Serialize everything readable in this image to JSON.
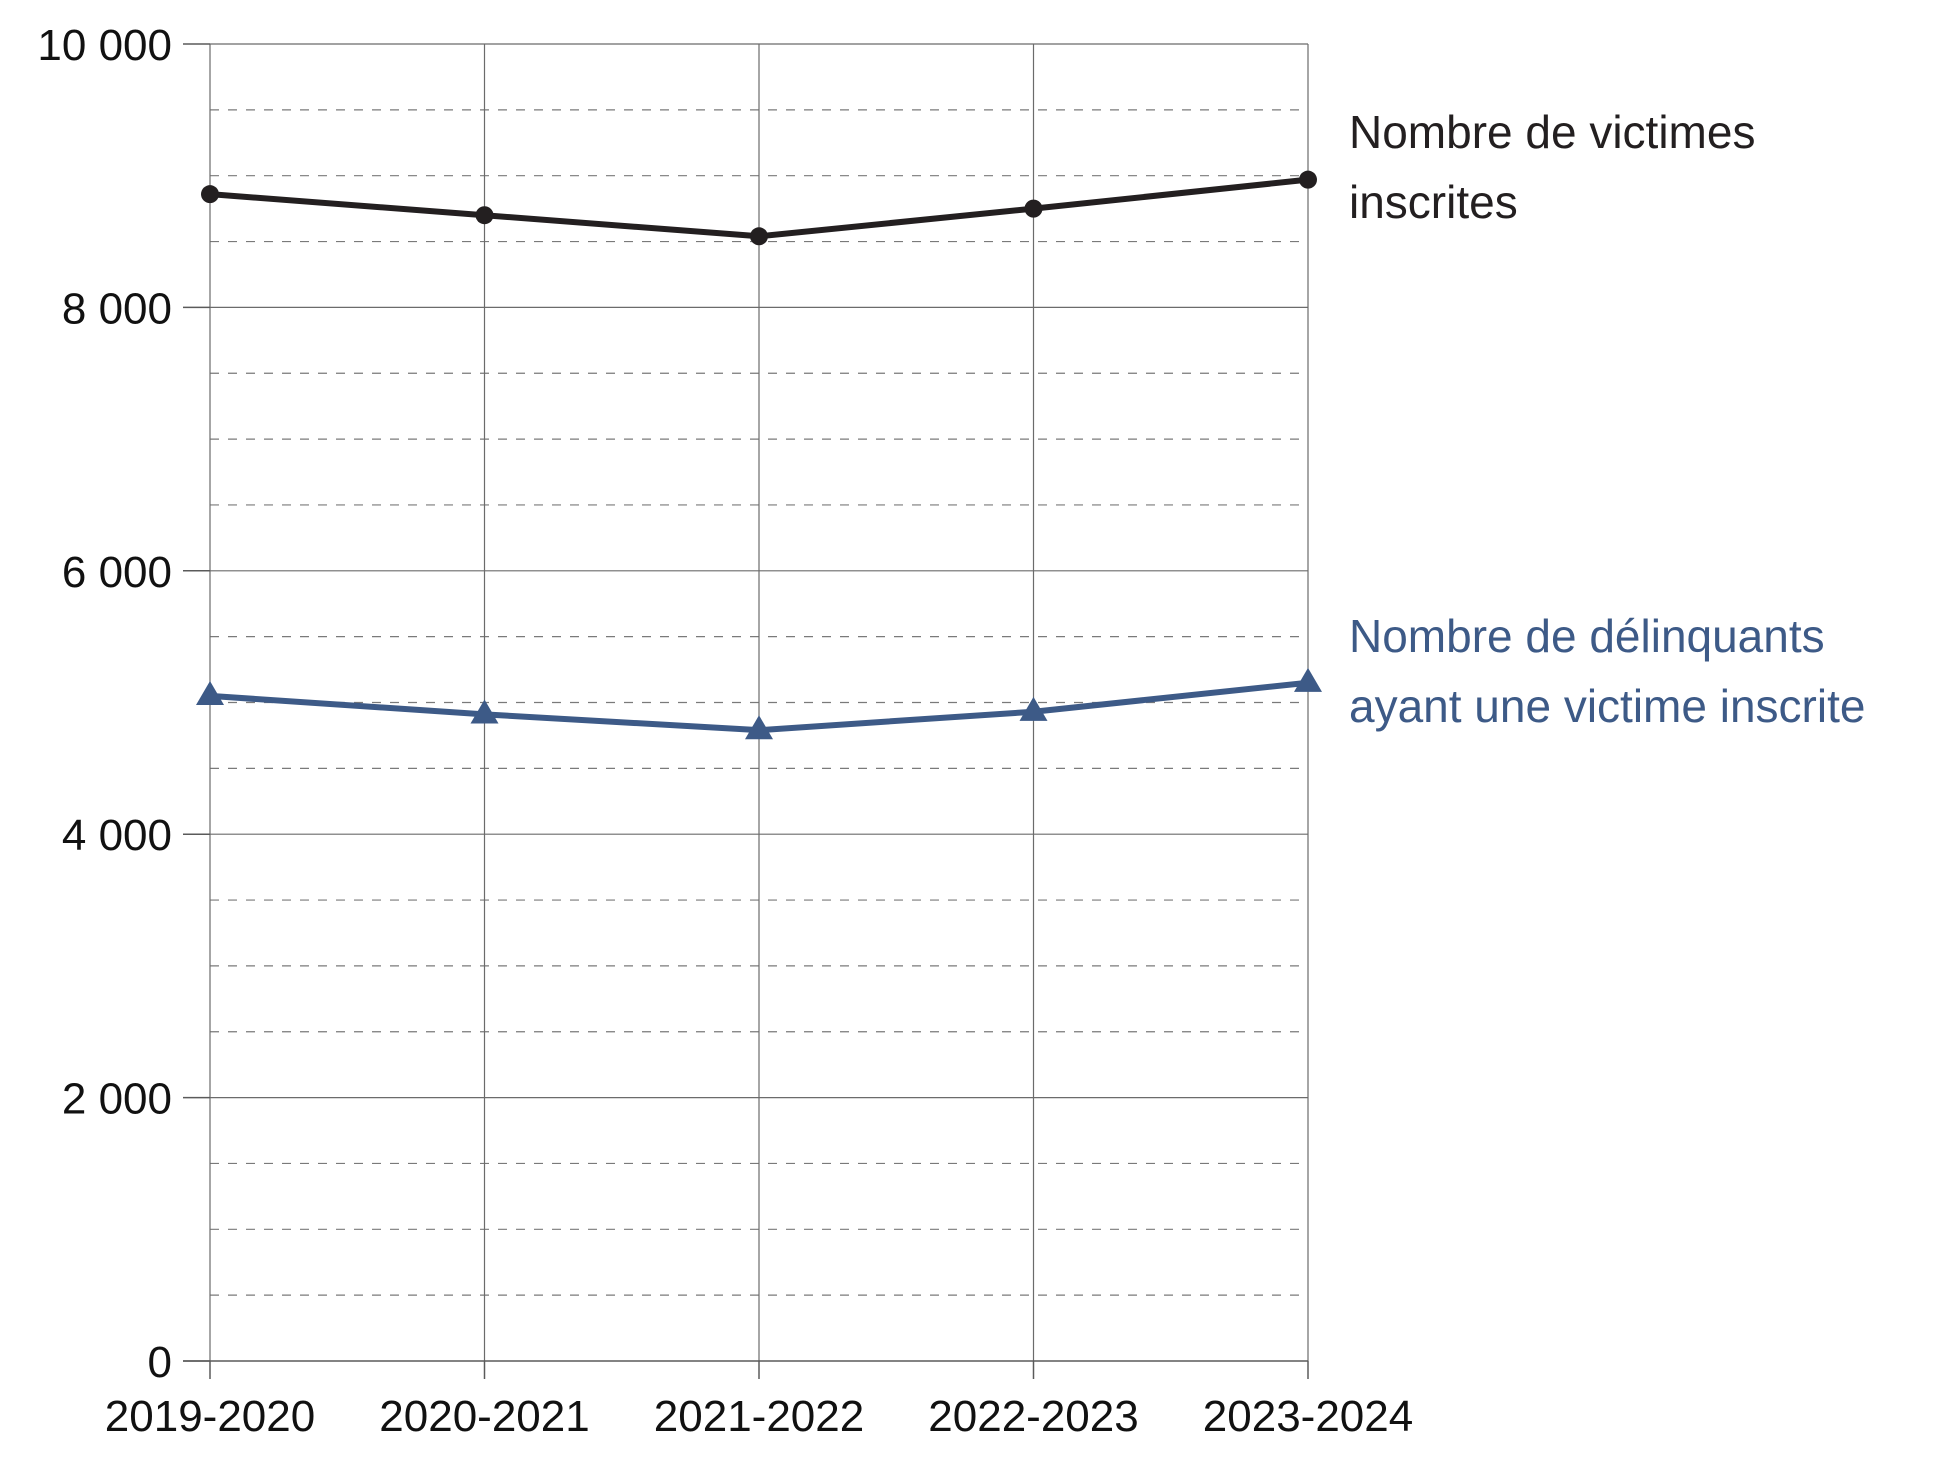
{
  "chart_data": {
    "type": "line",
    "categories": [
      "2019-2020",
      "2020-2021",
      "2021-2022",
      "2022-2023",
      "2023-2024"
    ],
    "y_ticks": [
      "0",
      "2 000",
      "4 000",
      "6 000",
      "8 000",
      "10 000"
    ],
    "y_tick_values": [
      0,
      2000,
      4000,
      6000,
      8000,
      10000
    ],
    "ylim": [
      0,
      10000
    ],
    "minor_grid_step": 500,
    "grid": true,
    "series": [
      {
        "name": "Nombre de victimes inscrites",
        "label_lines": [
          "Nombre de victimes",
          "inscrites"
        ],
        "values": [
          8860,
          8700,
          8540,
          8750,
          8970
        ],
        "color": "#231f20",
        "marker": "circle"
      },
      {
        "name": "Nombre de délinquants ayant une victime inscrite",
        "label_lines": [
          "Nombre de délinquants",
          "ayant une victime inscrite"
        ],
        "values": [
          5050,
          4910,
          4790,
          4930,
          5150
        ],
        "color": "#3d5a87",
        "marker": "triangle"
      }
    ]
  }
}
